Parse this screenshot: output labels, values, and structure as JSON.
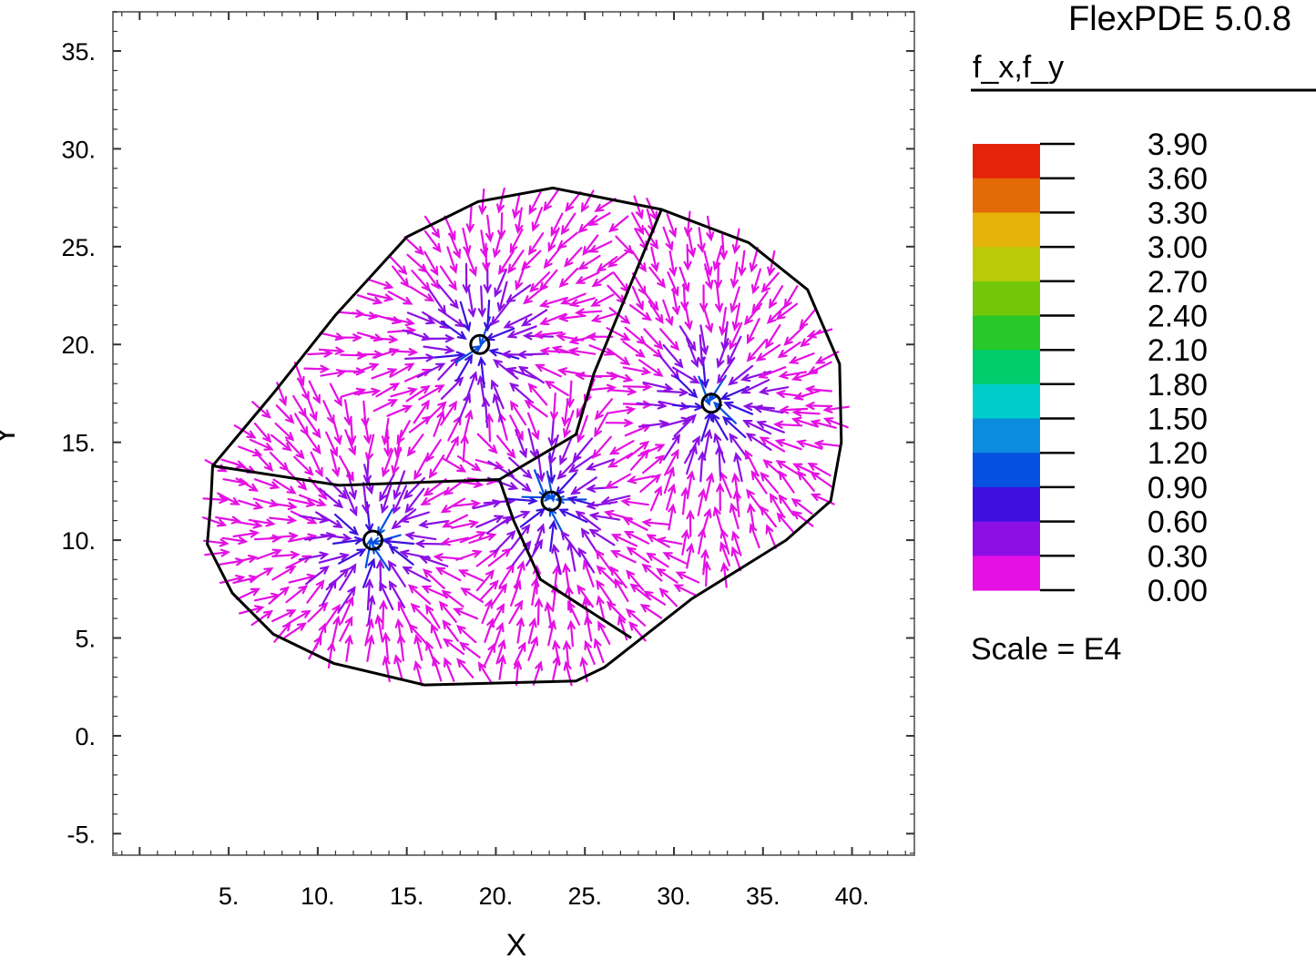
{
  "header": {
    "program": "FlexPDE 5.0.8",
    "variable": "f_x,f_y",
    "scale_note": "Scale = E4"
  },
  "chart_data": {
    "type": "vector-field",
    "xlabel": "X",
    "ylabel": "Y",
    "xlim": [
      -1.5,
      43.5
    ],
    "ylim": [
      -6.1,
      37.0
    ],
    "xticks": [
      5,
      10,
      15,
      20,
      25,
      30,
      35,
      40
    ],
    "xtick_labels": [
      "5.",
      "10.",
      "15.",
      "20.",
      "25.",
      "30.",
      "35.",
      "40."
    ],
    "yticks": [
      -5,
      0,
      5,
      10,
      15,
      20,
      25,
      30,
      35
    ],
    "ytick_labels": [
      "-5.",
      "0.",
      "5.",
      "10.",
      "15.",
      "20.",
      "25.",
      "30.",
      "35."
    ],
    "domain_boundary": [
      [
        4.1,
        13.8
      ],
      [
        7.5,
        17.5
      ],
      [
        11,
        21.5
      ],
      [
        15,
        25.5
      ],
      [
        19,
        27.3
      ],
      [
        23.2,
        28
      ],
      [
        29.3,
        26.9
      ],
      [
        34.2,
        25.2
      ],
      [
        37.5,
        22.8
      ],
      [
        39.3,
        19
      ],
      [
        39.4,
        15
      ],
      [
        38.8,
        12
      ],
      [
        36.3,
        10
      ],
      [
        31,
        7
      ],
      [
        26.1,
        3.5
      ],
      [
        24.5,
        2.8
      ],
      [
        16,
        2.6
      ],
      [
        10.9,
        3.7
      ],
      [
        7.5,
        5.2
      ],
      [
        5.2,
        7.3
      ],
      [
        3.8,
        9.8
      ],
      [
        4,
        12
      ]
    ],
    "region_boundaries": [
      [
        [
          4.1,
          13.8
        ],
        [
          11.2,
          12.8
        ],
        [
          20.2,
          13.1
        ]
      ],
      [
        [
          20.2,
          13.1
        ],
        [
          21,
          11
        ],
        [
          22.5,
          8
        ],
        [
          27.6,
          5
        ]
      ],
      [
        [
          20.2,
          13.1
        ],
        [
          24.5,
          15.4
        ],
        [
          25.5,
          18.5
        ],
        [
          29.3,
          26.9
        ]
      ]
    ],
    "sources": [
      {
        "x": 19.1,
        "y": 20.0
      },
      {
        "x": 32.1,
        "y": 17.0
      },
      {
        "x": 23.1,
        "y": 12.0
      },
      {
        "x": 13.1,
        "y": 10.0
      }
    ],
    "colorbar": {
      "levels": [
        "3.90",
        "3.60",
        "3.30",
        "3.00",
        "2.70",
        "2.40",
        "2.10",
        "1.80",
        "1.50",
        "1.20",
        "0.90",
        "0.60",
        "0.30",
        "0.00"
      ],
      "colors": [
        "#e42308",
        "#e46a08",
        "#e4b208",
        "#bccb08",
        "#74c708",
        "#28c82a",
        "#00cc6c",
        "#00cccc",
        "#0c8cdf",
        "#0650e0",
        "#3d10e0",
        "#8c10e4",
        "#e410e4"
      ]
    }
  }
}
